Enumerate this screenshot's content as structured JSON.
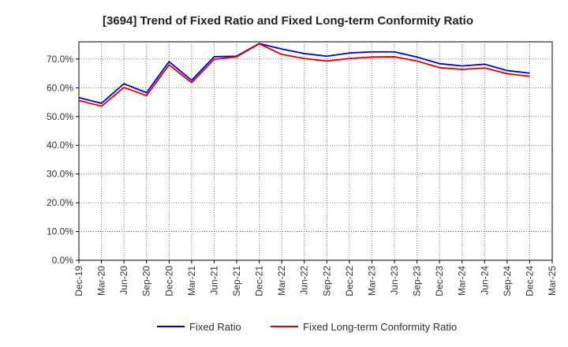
{
  "chart_data": {
    "type": "line",
    "title": "[3694]  Trend of Fixed Ratio and Fixed Long-term Conformity Ratio",
    "xlabel": "",
    "ylabel": "",
    "x_tick_labels": [
      "Dec-19",
      "Mar-20",
      "Jun-20",
      "Sep-20",
      "Dec-20",
      "Mar-21",
      "Jun-21",
      "Sep-21",
      "Dec-21",
      "Mar-22",
      "Jun-22",
      "Sep-22",
      "Dec-22",
      "Mar-23",
      "Jun-23",
      "Sep-23",
      "Dec-23",
      "Mar-24",
      "Jun-24",
      "Sep-24",
      "Dec-24",
      "Mar-25"
    ],
    "x": [
      "Dec-19",
      "Mar-20",
      "Jun-20",
      "Sep-20",
      "Dec-20",
      "Mar-21",
      "Jun-21",
      "Sep-21",
      "Dec-21",
      "Mar-22",
      "Jun-22",
      "Sep-22",
      "Dec-22",
      "Mar-23",
      "Jun-23",
      "Sep-23",
      "Dec-23",
      "Mar-24",
      "Jun-24",
      "Sep-24",
      "Dec-24"
    ],
    "y_ticks": [
      0,
      10,
      20,
      30,
      40,
      50,
      60,
      70
    ],
    "y_tick_labels": [
      "0.0%",
      "10.0%",
      "20.0%",
      "30.0%",
      "40.0%",
      "50.0%",
      "60.0%",
      "70.0%"
    ],
    "ylim": [
      0,
      76
    ],
    "grid": true,
    "legend_position": "bottom",
    "series": [
      {
        "name": "Fixed Ratio",
        "color": "#0000cc",
        "values": [
          56.6,
          54.6,
          61.4,
          58.3,
          69.1,
          62.6,
          70.8,
          71.0,
          75.4,
          73.5,
          71.9,
          71.0,
          72.1,
          72.5,
          72.5,
          70.7,
          68.4,
          67.6,
          68.2,
          66.0,
          65.1
        ]
      },
      {
        "name": "Fixed Long-term Conformity Ratio",
        "color": "#dd0000",
        "values": [
          55.6,
          53.6,
          60.1,
          57.3,
          68.0,
          61.8,
          69.9,
          70.8,
          75.3,
          71.6,
          70.2,
          69.3,
          70.2,
          70.7,
          70.8,
          69.3,
          67.0,
          66.4,
          66.9,
          64.9,
          64.0
        ]
      }
    ]
  }
}
